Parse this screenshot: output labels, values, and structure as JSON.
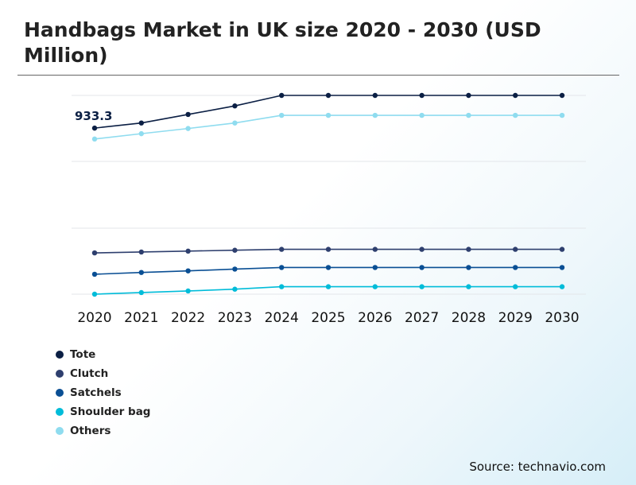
{
  "header": {
    "title": "Handbags Market in UK size 2020 - 2030 (USD Million)"
  },
  "footer": {
    "source": "Source: technavio.com"
  },
  "chart_data": {
    "type": "line",
    "title": "Handbags Market in UK size 2020 - 2030 (USD Million)",
    "xlabel": "",
    "ylabel": "",
    "categories": [
      "2020",
      "2021",
      "2022",
      "2023",
      "2024",
      "2025",
      "2026",
      "2027",
      "2028",
      "2029",
      "2030"
    ],
    "grid": true,
    "legend_position": "bottom-left",
    "annotations": [
      {
        "series": "Tote",
        "category": "2020",
        "text": "933.3"
      }
    ],
    "ylim": [
      0,
      1250
    ],
    "series": [
      {
        "name": "Tote",
        "color": "#0b1f44",
        "values": [
          933.3,
          962,
          1010,
          1058,
          1117,
          1117,
          1117,
          1117,
          1117,
          1117,
          1117
        ]
      },
      {
        "name": "Clutch",
        "color": "#2e3f6e",
        "values": [
          232,
          237,
          242,
          247,
          252,
          252,
          252,
          252,
          252,
          252,
          252
        ]
      },
      {
        "name": "Satchels",
        "color": "#0a4f94",
        "values": [
          112,
          122,
          131,
          141,
          150,
          150,
          150,
          150,
          150,
          150,
          150
        ]
      },
      {
        "name": "Shoulder bag",
        "color": "#00bcd9",
        "values": [
          0,
          9,
          18,
          28,
          42,
          42,
          42,
          42,
          42,
          42,
          42
        ]
      },
      {
        "name": "Others",
        "color": "#8fdcef",
        "values": [
          872,
          902,
          931,
          962,
          1005,
          1005,
          1005,
          1005,
          1005,
          1005,
          1005
        ]
      }
    ]
  }
}
